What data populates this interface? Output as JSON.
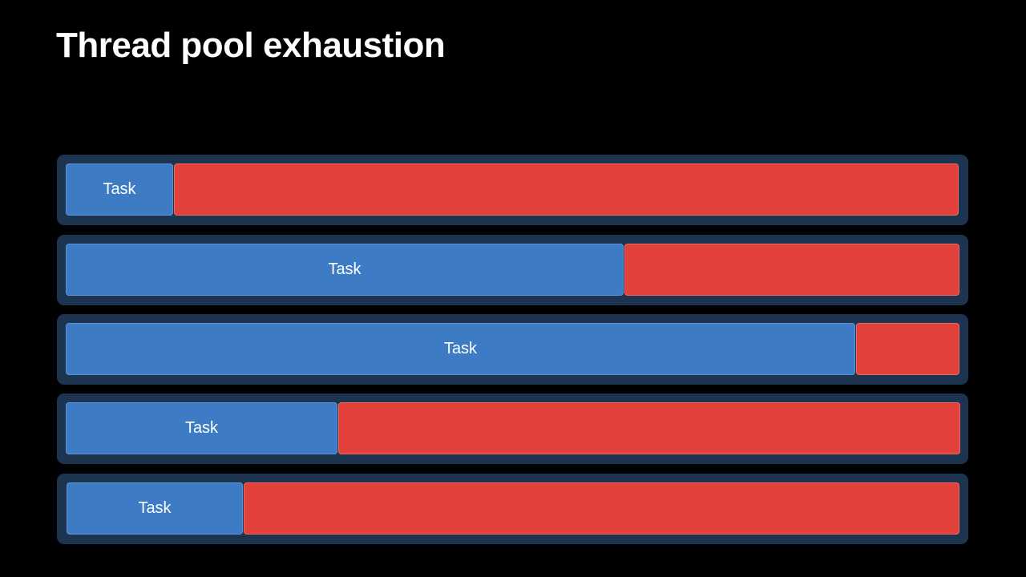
{
  "title": "Thread pool exhaustion",
  "rows": [
    {
      "label": "Task"
    },
    {
      "label": "Task"
    },
    {
      "label": "Task"
    },
    {
      "label": "Task"
    },
    {
      "label": "Task"
    }
  ]
}
